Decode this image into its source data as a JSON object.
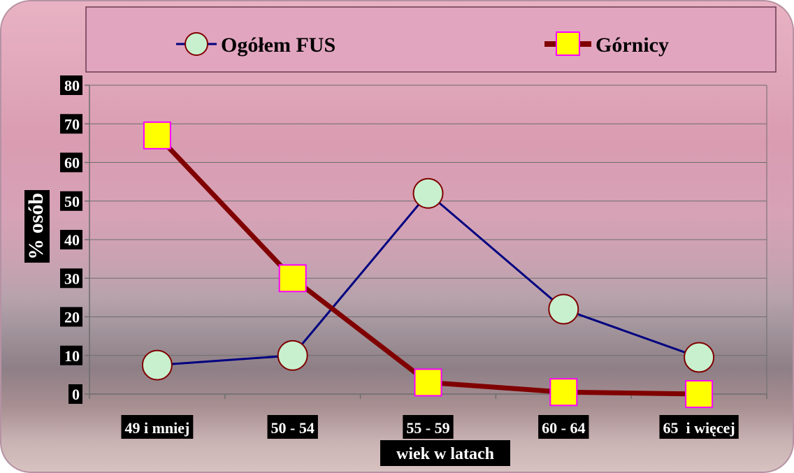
{
  "chart_data": {
    "type": "line",
    "categories": [
      "49 i mniej",
      "50 - 54",
      "55 - 59",
      "60 - 64",
      "65  i więcej"
    ],
    "series": [
      {
        "name": "Ogółem FUS",
        "values": [
          7.5,
          10,
          52,
          22,
          9.5
        ],
        "color": "#000080",
        "marker": "circle",
        "marker_fill": "#c8f0cf",
        "marker_stroke": "#800000"
      },
      {
        "name": "Górnicy",
        "values": [
          67,
          30,
          3,
          0.5,
          0
        ],
        "color": "#800000",
        "marker": "square",
        "marker_fill": "#ffff00",
        "marker_stroke": "#ff00ff"
      }
    ],
    "xlabel": "wiek w latach",
    "ylabel": "% osób",
    "ylim": [
      0,
      80
    ],
    "yticks": [
      0,
      10,
      20,
      30,
      40,
      50,
      60,
      70,
      80
    ],
    "grid": true,
    "legend": "top"
  }
}
